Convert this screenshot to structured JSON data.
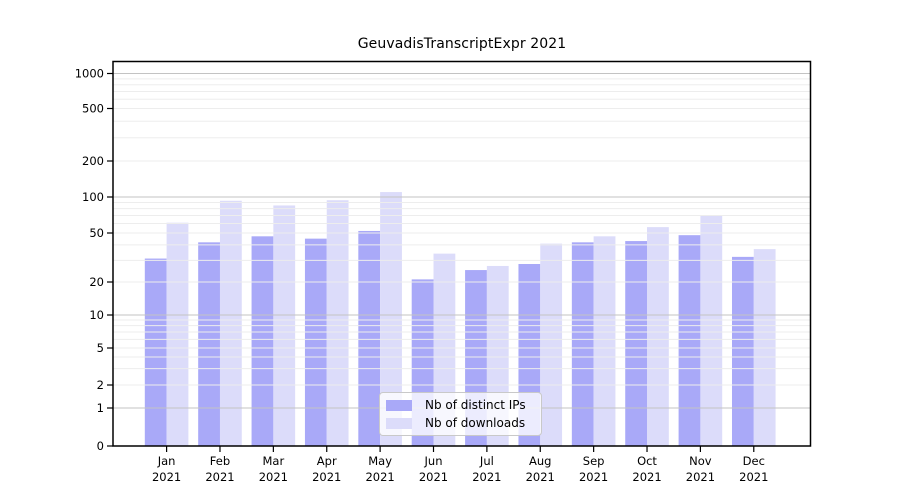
{
  "figure": {
    "title": "GeuvadisTranscriptExpr 2021"
  },
  "chart_data": {
    "type": "bar",
    "title": "GeuvadisTranscriptExpr 2021",
    "scale": "symlog",
    "grid": true,
    "legend_position": "bottom-center-inside",
    "categories": [
      "Jan",
      "Feb",
      "Mar",
      "Apr",
      "May",
      "Jun",
      "Jul",
      "Aug",
      "Sep",
      "Oct",
      "Nov",
      "Dec"
    ],
    "year_label": "2021",
    "series": [
      {
        "name": "Nb of distinct IPs",
        "color": "#a9a9f8",
        "values": [
          31,
          42,
          47,
          45,
          52,
          21,
          25,
          28,
          42,
          43,
          48,
          32
        ]
      },
      {
        "name": "Nb of downloads",
        "color": "#dcdcfa",
        "values": [
          61,
          93,
          85,
          94,
          110,
          34,
          27,
          41,
          47,
          56,
          70,
          37
        ]
      }
    ],
    "y_ticks": [
      1000,
      500,
      200,
      100,
      50,
      20,
      10,
      5,
      2,
      1,
      0
    ],
    "ylim": [
      0,
      1250
    ],
    "xlabel": "",
    "ylabel": ""
  },
  "colors": {
    "distinct_ips": "#a9a9f8",
    "downloads": "#dcdcfa",
    "grid_major": "#c3c3c3",
    "grid_minor": "#ededed",
    "axis": "#000000",
    "text": "#000000",
    "legend_border": "#c9c9c9"
  }
}
